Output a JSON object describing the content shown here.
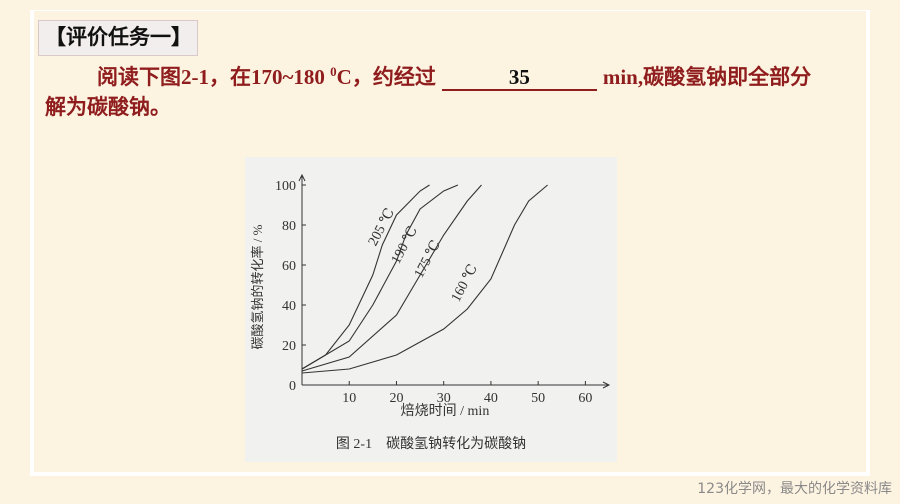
{
  "header": {
    "title": "【评价任务一】"
  },
  "paragraph": {
    "before": "阅读下图2-1，在170~180 ",
    "superscript": "0",
    "unit": "C，约经过",
    "answer": "35",
    "after": "min,碳酸氢钠即全部分解为碳酸钠。"
  },
  "chart_data": {
    "type": "line",
    "caption": "图 2-1　碳酸氢钠转化为碳酸钠",
    "x_label": "焙烧时间 / min",
    "y_label": "碳酸氢钠的转化率 / %",
    "xlim": [
      0,
      65
    ],
    "ylim": [
      0,
      105
    ],
    "xticks": [
      10,
      20,
      30,
      40,
      50,
      60
    ],
    "yticks": [
      0,
      20,
      40,
      60,
      80,
      100
    ],
    "series": [
      {
        "name": "205 ℃",
        "color": "#333333",
        "x": [
          0,
          5,
          10,
          15,
          17,
          20,
          25,
          27
        ],
        "values": [
          8,
          15,
          30,
          55,
          70,
          85,
          97,
          100
        ]
      },
      {
        "name": "190 ℃",
        "color": "#333333",
        "x": [
          0,
          10,
          15,
          20,
          22,
          25,
          30,
          33
        ],
        "values": [
          8,
          22,
          40,
          62,
          75,
          88,
          97,
          100
        ]
      },
      {
        "name": "175 ℃",
        "color": "#333333",
        "x": [
          0,
          10,
          20,
          25,
          30,
          35,
          38
        ],
        "values": [
          7,
          14,
          35,
          55,
          75,
          92,
          100
        ]
      },
      {
        "name": "160 ℃",
        "color": "#333333",
        "x": [
          0,
          10,
          20,
          30,
          35,
          40,
          45,
          48,
          52
        ],
        "values": [
          6,
          8,
          15,
          28,
          38,
          53,
          80,
          92,
          100
        ]
      }
    ]
  },
  "footer": "123化学网，最大的化学资料库"
}
